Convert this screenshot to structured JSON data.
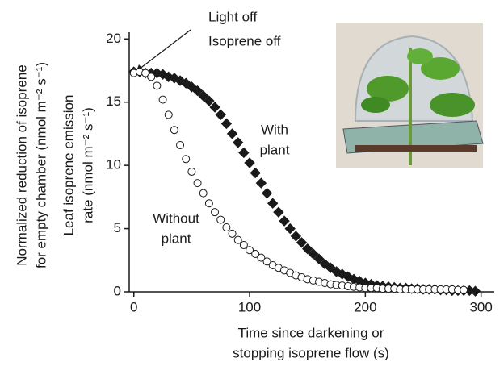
{
  "chart_data": {
    "type": "scatter",
    "x_label": [
      "Time since darkening or",
      "stopping isoprene flow (s)"
    ],
    "y_label": [
      "Normalized reduction of isoprene",
      "for empty chamber (nmol m⁻² s⁻¹)",
      "Leaf isoprene emission",
      "rate (nmol m⁻² s⁻¹)"
    ],
    "annotations": [
      "Light off",
      "Isoprene off"
    ],
    "series_labels": [
      [
        "With",
        "plant"
      ],
      [
        "Without",
        "plant"
      ]
    ],
    "xlim": [
      -4,
      310
    ],
    "ylim": [
      0,
      20.4
    ],
    "xticks": [
      0,
      100,
      200,
      300
    ],
    "yticks": [
      0,
      5,
      10,
      15,
      20
    ],
    "series": [
      {
        "marker": "diamond",
        "color": "#1a1a1a",
        "x": [
          0,
          5,
          10,
          15,
          20,
          25,
          30,
          35,
          40,
          45,
          50,
          55,
          60,
          65,
          70,
          75,
          80,
          85,
          90,
          95,
          100,
          105,
          110,
          115,
          120,
          125,
          130,
          135,
          140,
          145,
          150,
          155,
          160,
          165,
          170,
          175,
          180,
          185,
          190,
          195,
          200,
          205,
          210,
          215,
          220,
          225,
          230,
          235,
          240,
          245,
          250,
          255,
          260,
          265,
          270,
          275,
          280,
          285,
          290,
          295
        ],
        "values": [
          17.4,
          17.4,
          17.3,
          17.3,
          17.3,
          17.2,
          17.0,
          16.9,
          16.7,
          16.5,
          16.2,
          15.9,
          15.5,
          15.1,
          14.6,
          14.0,
          13.3,
          12.5,
          11.8,
          11.0,
          10.2,
          9.4,
          8.6,
          7.8,
          7.0,
          6.3,
          5.6,
          5.0,
          4.4,
          3.9,
          3.4,
          3.0,
          2.6,
          2.2,
          1.9,
          1.6,
          1.4,
          1.2,
          1.0,
          0.85,
          0.7,
          0.6,
          0.5,
          0.45,
          0.4,
          0.35,
          0.3,
          0.3,
          0.25,
          0.25,
          0.2,
          0.2,
          0.2,
          0.15,
          0.15,
          0.1,
          0.1,
          0.1,
          0.1,
          0.05
        ]
      },
      {
        "marker": "circle",
        "color": "#ffffff",
        "x": [
          0,
          5,
          10,
          15,
          20,
          25,
          30,
          35,
          40,
          45,
          50,
          55,
          60,
          65,
          70,
          75,
          80,
          85,
          90,
          95,
          100,
          105,
          110,
          115,
          120,
          125,
          130,
          135,
          140,
          145,
          150,
          155,
          160,
          165,
          170,
          175,
          180,
          185,
          190,
          195,
          200,
          205,
          210,
          215,
          220,
          225,
          230,
          235,
          240,
          245,
          250,
          255,
          260,
          265,
          270,
          275,
          280,
          285
        ],
        "values": [
          17.3,
          17.4,
          17.3,
          17.0,
          16.3,
          15.2,
          14.0,
          12.8,
          11.6,
          10.5,
          9.5,
          8.6,
          7.8,
          7.0,
          6.3,
          5.7,
          5.1,
          4.6,
          4.1,
          3.7,
          3.3,
          3.0,
          2.7,
          2.4,
          2.1,
          1.9,
          1.7,
          1.5,
          1.3,
          1.15,
          1.0,
          0.9,
          0.8,
          0.7,
          0.6,
          0.55,
          0.5,
          0.45,
          0.4,
          0.35,
          0.3,
          0.3,
          0.3,
          0.25,
          0.25,
          0.25,
          0.2,
          0.2,
          0.2,
          0.2,
          0.2,
          0.2,
          0.2,
          0.2,
          0.2,
          0.2,
          0.15,
          0.15
        ]
      }
    ]
  }
}
